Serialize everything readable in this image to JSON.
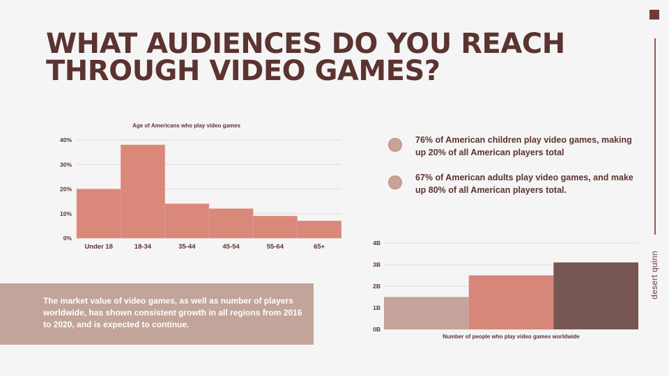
{
  "title": "WHAT AUDIENCES DO YOU REACH THROUGH VIDEO GAMES?",
  "brand": "desert quinn",
  "bullets": [
    "76% of American children play video games, making up 20% of all American players total",
    "67% of American adults play video games, and make up 80% of all American players total."
  ],
  "callout": "The market value of video games, as well as number of players worldwide, has shown consistent growth in all regions from 2016 to 2020, and is expected to continue.",
  "colors": {
    "title": "#5b3330",
    "hist_bar": "#d9887a",
    "callout_bg": "#c2a49b",
    "bar_colors": [
      "#c4a39a",
      "#d6877a",
      "#765753"
    ],
    "accent": "#6e3b36"
  },
  "chart_data": [
    {
      "type": "bar",
      "title": "Age of Americans who play video games",
      "categories": [
        "Under 18",
        "18-34",
        "35-44",
        "45-54",
        "55-64",
        "65+"
      ],
      "values": [
        20,
        38,
        14,
        12,
        9,
        7
      ],
      "ylim": [
        0,
        40
      ],
      "yticks": [
        "0%",
        "10%",
        "20%",
        "30%",
        "40%"
      ],
      "grid": true
    },
    {
      "type": "bar",
      "title": "",
      "xlabel": "Number of people who play video games worldwide",
      "values": [
        1.5,
        2.5,
        3.1
      ],
      "ylim": [
        0,
        4
      ],
      "yticks": [
        "0B",
        "1B",
        "2B",
        "3B",
        "4B"
      ],
      "grid": true
    }
  ]
}
